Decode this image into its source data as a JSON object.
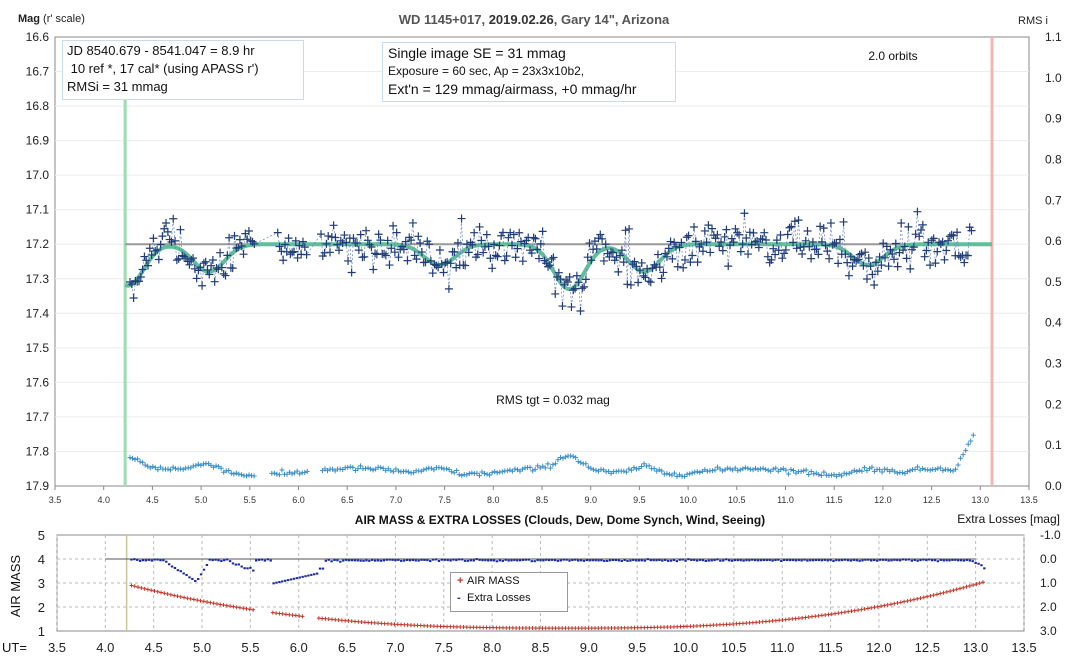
{
  "chart_data": [
    {
      "type": "scatter",
      "title_parts": [
        "WD 1145+017, ",
        "2019.02.26",
        ", Gary 14\", Arizona"
      ],
      "ylabel_main": "Mag",
      "ylabel_sub": " (r' scale)",
      "y2label": "RMS i",
      "ylim": [
        17.9,
        16.6
      ],
      "y2lim": [
        0.0,
        1.1
      ],
      "xlim": [
        3.5,
        13.5
      ],
      "yticks": [
        "16.6",
        "16.7",
        "16.8",
        "16.9",
        "17.0",
        "17.1",
        "17.2",
        "17.3",
        "17.4",
        "17.5",
        "17.6",
        "17.7",
        "17.8",
        "17.9"
      ],
      "y2ticks": [
        "1.1",
        "1.0",
        "0.9",
        "0.8",
        "0.7",
        "0.6",
        "0.5",
        "0.4",
        "0.3",
        "0.2",
        "0.1",
        "0.0"
      ],
      "xticks": [
        "3.5",
        "4.0",
        "4.5",
        "5.0",
        "5.5",
        "6.0",
        "6.5",
        "7.0",
        "7.5",
        "8.0",
        "8.5",
        "9.0",
        "9.5",
        "10.0",
        "10.5",
        "11.0",
        "11.5",
        "12.0",
        "12.5",
        "13.0",
        "13.5"
      ],
      "info_box_1": [
        "JD 8540.679 - 8541.047 = 8.9 hr",
        " 10 ref *, 17 cal* (using APASS r')",
        "RMSi = 31 mmag"
      ],
      "info_box_2": [
        "Single image SE = 31 mmag",
        "Exposure = 60 sec, Ap = 23x3x10b2,",
        "Ext'n = 129 mmag/airmass, +0 mmag/hr"
      ],
      "orbits_label": "2.0 orbits",
      "rms_label": "RMS tgt = 0.032 mag",
      "baseline_mag": 17.2,
      "start_ut": 4.22,
      "end_ut": 13.12,
      "model_dips": [
        {
          "ut": 4.25,
          "depth": 0.12
        },
        {
          "ut": 5.08,
          "depth": 0.08
        },
        {
          "ut": 7.45,
          "depth": 0.06
        },
        {
          "ut": 8.78,
          "depth": 0.13
        },
        {
          "ut": 9.55,
          "depth": 0.08
        },
        {
          "ut": 11.85,
          "depth": 0.06
        }
      ],
      "gaps_ut": [
        [
          5.55,
          5.78
        ],
        [
          6.1,
          6.22
        ]
      ],
      "rms_level_base": 0.035,
      "colors": {
        "data": "#1f3d7a",
        "model": "#5fbf9a",
        "baseline": "#999999",
        "rms": "#3a8fc8",
        "start_line": "#9fdcb0",
        "end_line": "#f5b5b5"
      }
    },
    {
      "type": "scatter",
      "title": "AIR MASS & EXTRA LOSSES (Clouds, Dew, Dome Synch, Wind, Seeing)",
      "ylabel": "AIR MASS",
      "y2label": "Extra Losses [mag]",
      "xlabel": "UT=",
      "ylim": [
        1,
        5
      ],
      "y2lim": [
        3.0,
        -1.0
      ],
      "yticks": [
        "1",
        "2",
        "3",
        "4",
        "5"
      ],
      "y2ticks": [
        "3.0",
        "2.0",
        "1.0",
        "0.0",
        "-1.0"
      ],
      "xticks": [
        "3.5",
        "4.0",
        "4.5",
        "5.0",
        "5.5",
        "6.0",
        "6.5",
        "7.0",
        "7.5",
        "8.0",
        "8.5",
        "9.0",
        "9.5",
        "10.0",
        "10.5",
        "11.0",
        "11.5",
        "12.0",
        "12.5",
        "13.0",
        "13.5"
      ],
      "legend": [
        "AIR MASS",
        "Extra Losses"
      ],
      "legend_marks": [
        "+",
        "-"
      ],
      "airmass_fit": {
        "ut_min": 8.8,
        "min_value": 1.12
      },
      "colors": {
        "airmass": "#c0392b",
        "extra_losses": "#1a2a9e",
        "zero_line": "#555555"
      }
    }
  ]
}
